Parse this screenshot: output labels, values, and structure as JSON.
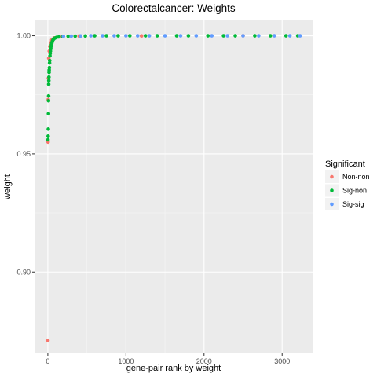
{
  "chart_data": {
    "type": "scatter",
    "title": "Colorectalcancer: Weights",
    "xlabel": "gene-pair rank by weight",
    "ylabel": "weight",
    "xlim": [
      -170,
      3390
    ],
    "ylim": [
      0.8655,
      1.0065
    ],
    "x_ticks": [
      0,
      1000,
      2000,
      3000
    ],
    "x_tick_labels": [
      "0",
      "1000",
      "2000",
      "3000"
    ],
    "y_ticks": [
      0.9,
      0.95,
      1.0
    ],
    "y_tick_labels": [
      "0.90",
      "0.95",
      "1.00"
    ],
    "grid": true,
    "legend": {
      "title": "Significant",
      "position": "right",
      "entries": [
        {
          "label": "Non-non",
          "color": "#F8766D"
        },
        {
          "label": "Sig-non",
          "color": "#00BA38"
        },
        {
          "label": "Sig-sig",
          "color": "#619CFF"
        }
      ]
    },
    "series": [
      {
        "name": "Non-non",
        "color": "#F8766D",
        "points": [
          [
            1,
            0.871
          ],
          [
            3,
            0.955
          ],
          [
            5,
            0.973
          ],
          [
            7,
            0.982
          ],
          [
            12,
            0.9905
          ],
          [
            18,
            0.9935
          ],
          [
            25,
            0.9955
          ],
          [
            35,
            0.997
          ],
          [
            50,
            0.9982
          ],
          [
            80,
            0.9991
          ],
          [
            150,
            0.9996
          ],
          [
            400,
            0.9999
          ],
          [
            1200,
            0.99995
          ],
          [
            2500,
            1.0
          ]
        ]
      },
      {
        "name": "Sig-non",
        "color": "#00BA38",
        "points": [
          [
            2,
            0.956
          ],
          [
            4,
            0.9575
          ],
          [
            6,
            0.9605
          ],
          [
            8,
            0.967
          ],
          [
            9,
            0.9725
          ],
          [
            10,
            0.9745
          ],
          [
            11,
            0.9795
          ],
          [
            13,
            0.981
          ],
          [
            14,
            0.9825
          ],
          [
            16,
            0.9845
          ],
          [
            17,
            0.9855
          ],
          [
            20,
            0.9865
          ],
          [
            22,
            0.9885
          ],
          [
            24,
            0.9895
          ],
          [
            27,
            0.9915
          ],
          [
            30,
            0.9925
          ],
          [
            33,
            0.9935
          ],
          [
            38,
            0.9945
          ],
          [
            42,
            0.9955
          ],
          [
            46,
            0.9962
          ],
          [
            52,
            0.997
          ],
          [
            58,
            0.9976
          ],
          [
            65,
            0.9982
          ],
          [
            75,
            0.9986
          ],
          [
            90,
            0.999
          ],
          [
            110,
            0.9993
          ],
          [
            140,
            0.9995
          ],
          [
            190,
            0.9997
          ],
          [
            260,
            0.9998
          ],
          [
            350,
            0.99985
          ],
          [
            480,
            0.9999
          ],
          [
            600,
            1.0
          ],
          [
            750,
            1.0
          ],
          [
            900,
            1.0
          ],
          [
            1050,
            1.0
          ],
          [
            1250,
            1.0
          ],
          [
            1400,
            1.0
          ],
          [
            1650,
            1.0
          ],
          [
            1800,
            1.0
          ],
          [
            2050,
            1.0
          ],
          [
            2250,
            1.0
          ],
          [
            2400,
            1.0
          ],
          [
            2650,
            1.0
          ],
          [
            2850,
            1.0
          ],
          [
            3050,
            1.0
          ],
          [
            3200,
            1.0
          ]
        ]
      },
      {
        "name": "Sig-sig",
        "color": "#619CFF",
        "points": [
          [
            200,
            0.99975
          ],
          [
            300,
            0.99985
          ],
          [
            420,
            0.9999
          ],
          [
            550,
            1.0
          ],
          [
            700,
            1.0
          ],
          [
            850,
            1.0
          ],
          [
            1000,
            1.0
          ],
          [
            1150,
            1.0
          ],
          [
            1300,
            1.0
          ],
          [
            1500,
            1.0
          ],
          [
            1700,
            1.0
          ],
          [
            1900,
            1.0
          ],
          [
            2100,
            1.0
          ],
          [
            2300,
            1.0
          ],
          [
            2500,
            1.0
          ],
          [
            2700,
            1.0
          ],
          [
            2900,
            1.0
          ],
          [
            3100,
            1.0
          ],
          [
            3230,
            1.0
          ]
        ]
      }
    ]
  }
}
